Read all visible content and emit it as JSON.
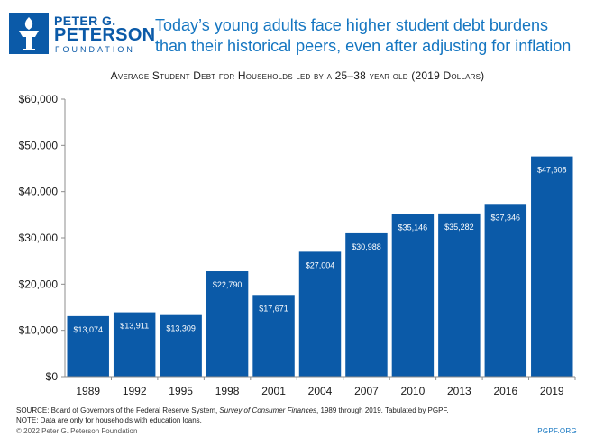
{
  "logo": {
    "line1": "PETER G.",
    "line2": "PETERSON",
    "line3": "FOUNDATION",
    "color": "#0b5aa8"
  },
  "headline": "Today’s young adults face higher student debt burdens than their historical peers, even after adjusting for inflation",
  "chart_title": "Average Student Debt for Households led by a 25–38 year old (2019 Dollars)",
  "chart_data": {
    "type": "bar",
    "title": "Average Student Debt for Households led by a 25–38 year old (2019 Dollars)",
    "categories": [
      "1989",
      "1992",
      "1995",
      "1998",
      "2001",
      "2004",
      "2007",
      "2010",
      "2013",
      "2016",
      "2019"
    ],
    "values": [
      13074,
      13911,
      13309,
      22790,
      17671,
      27004,
      30988,
      35146,
      35282,
      37346,
      47608
    ],
    "data_labels": [
      "$13,074",
      "$13,911",
      "$13,309",
      "$22,790",
      "$17,671",
      "$27,004",
      "$30,988",
      "$35,146",
      "$35,282",
      "$37,346",
      "$47,608"
    ],
    "ylim": [
      0,
      60000
    ],
    "yticks": [
      0,
      10000,
      20000,
      30000,
      40000,
      50000,
      60000
    ],
    "ytick_labels": [
      "$0",
      "$10,000",
      "$20,000",
      "$30,000",
      "$40,000",
      "$50,000",
      "$60,000"
    ],
    "grid": false,
    "bar_color": "#0b5aa8"
  },
  "source": {
    "prefix": "SOURCE:  Board of Governors of the Federal Reserve System, ",
    "italic": "Survey of Consumer Finances",
    "suffix": ", 1989 through 2019. Tabulated by PGPF.",
    "note": "NOTE:  Data are only for households with education loans."
  },
  "footer": {
    "copyright": "© 2022 Peter G. Peterson Foundation",
    "site": "PGPF.ORG"
  }
}
